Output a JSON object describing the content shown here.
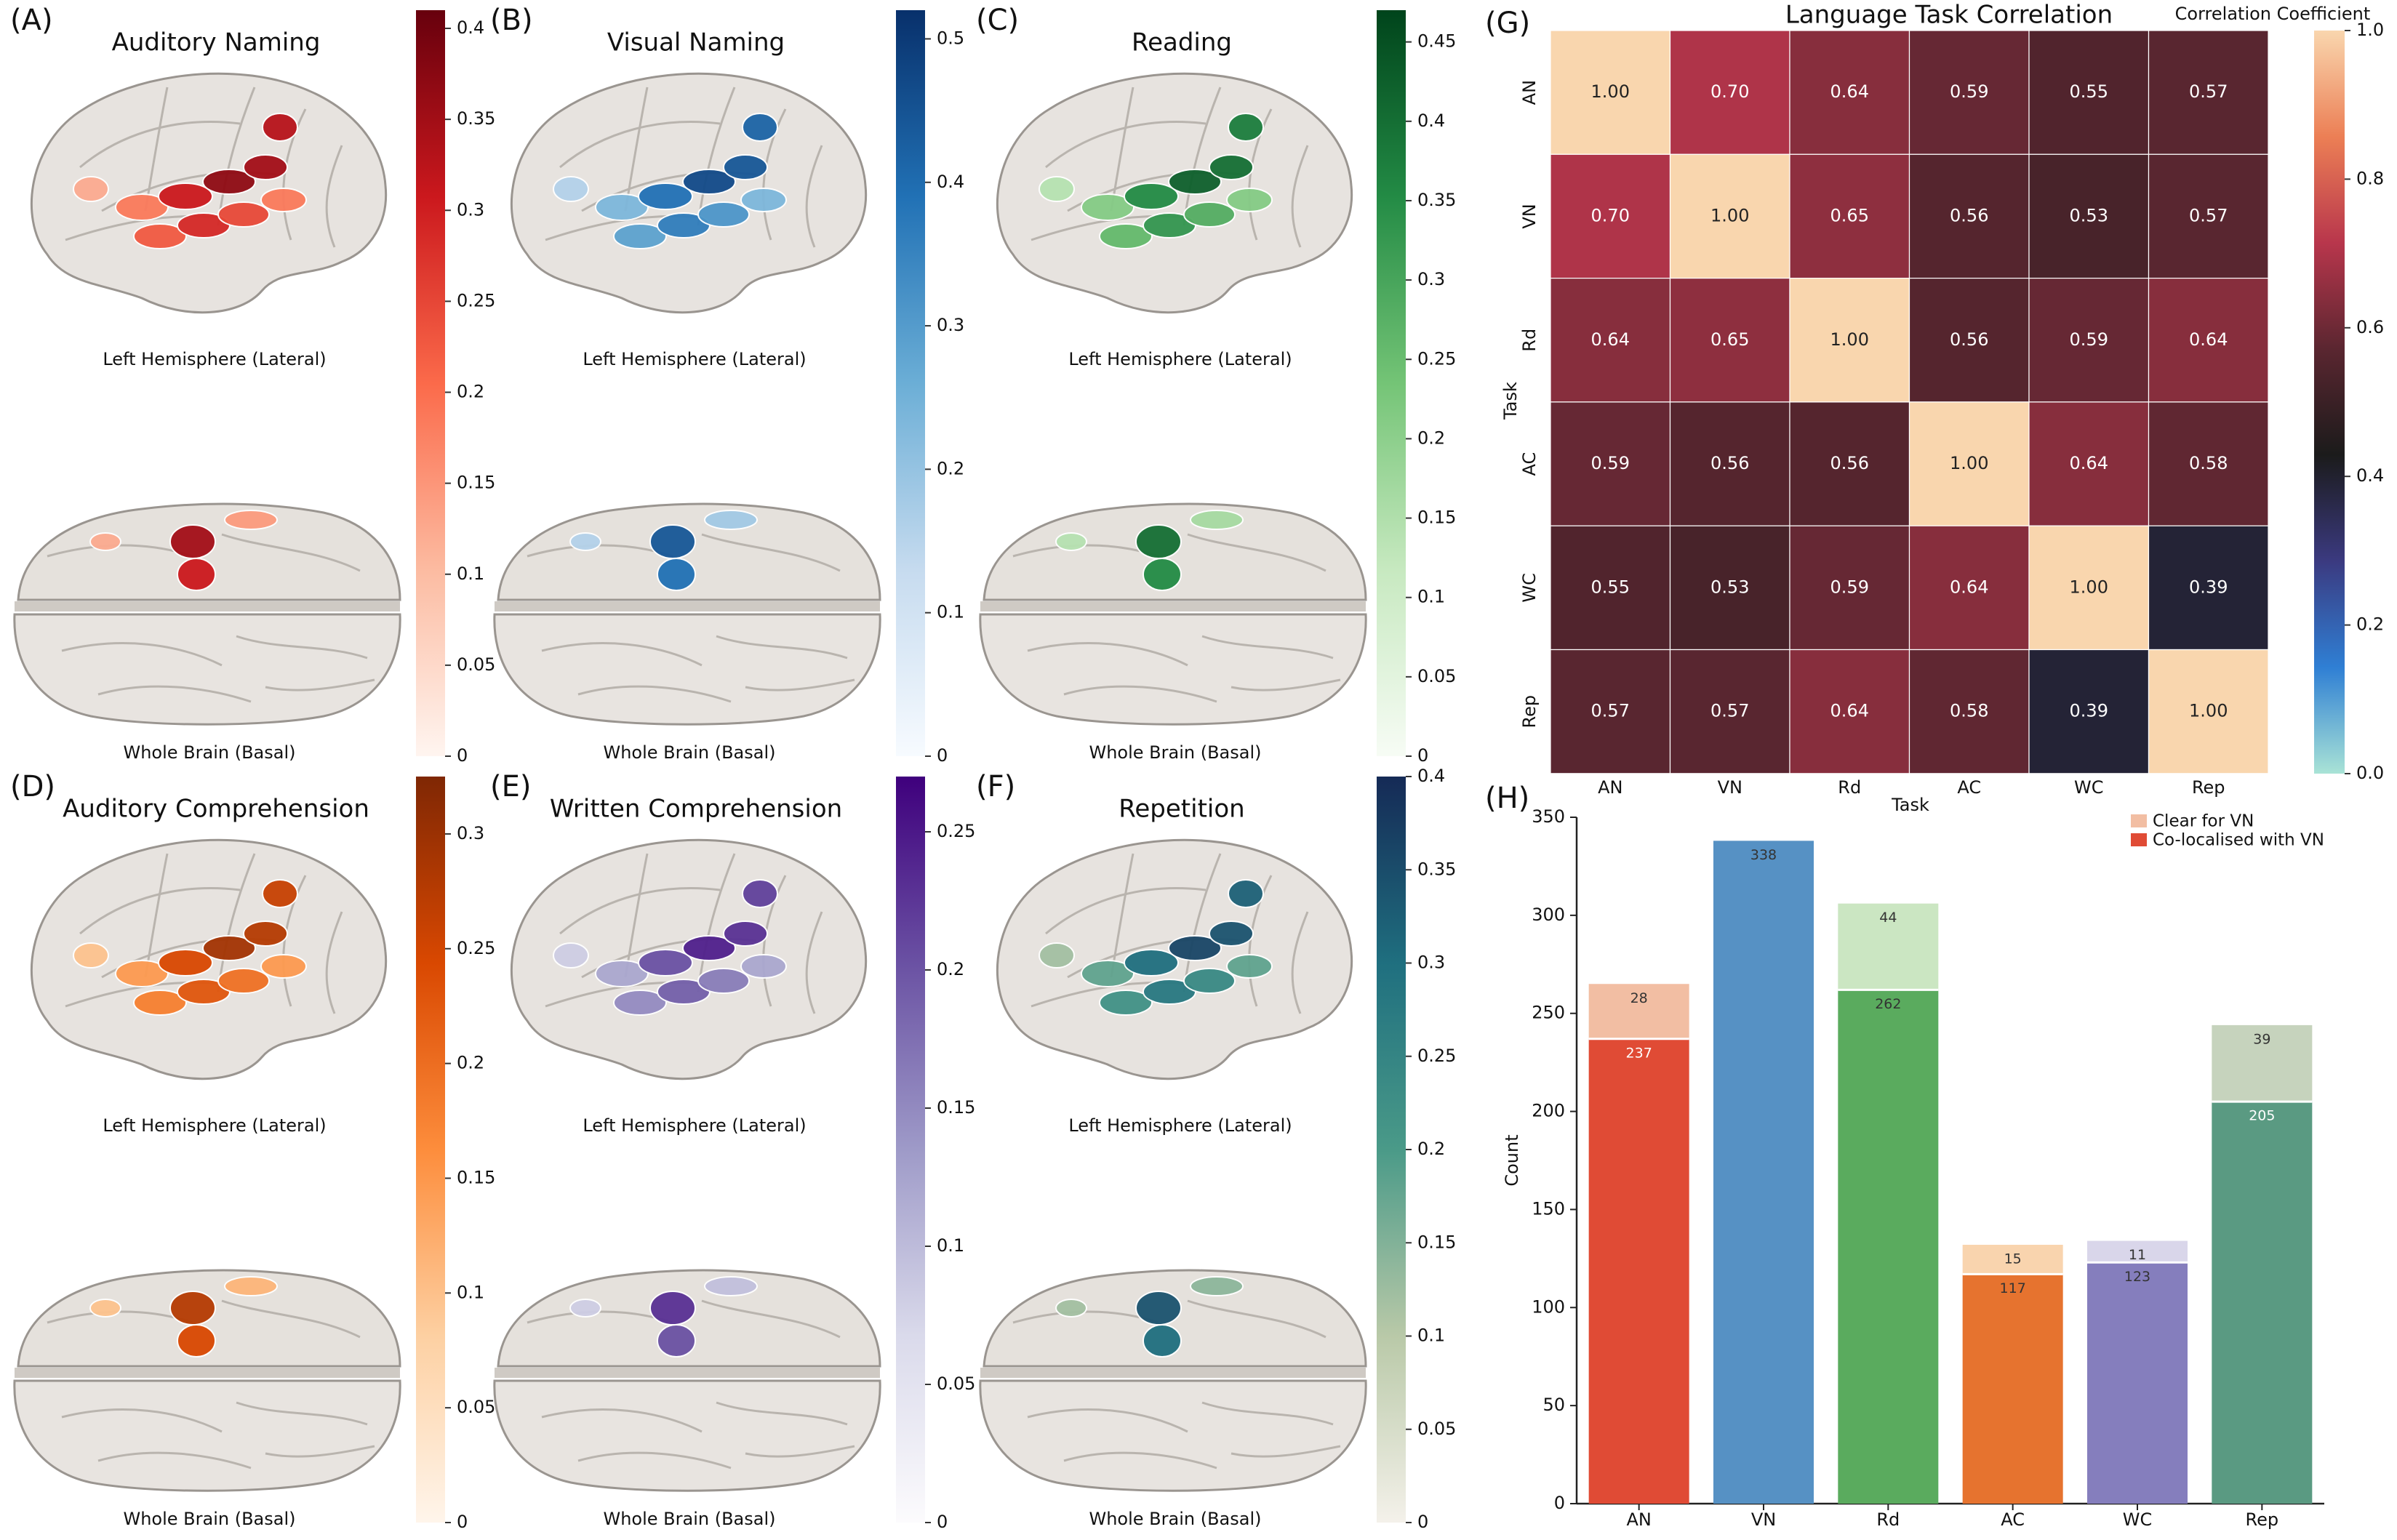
{
  "brain_panels": [
    {
      "letter": "(A)",
      "title": "Auditory Naming",
      "lateral_label": "Left Hemisphere (Lateral)",
      "basal_label": "Whole Brain (Basal)",
      "cmap": [
        "#fff5f0",
        "#fcbba1",
        "#fb6a4a",
        "#cb181d",
        "#67000d"
      ],
      "ticks": [
        0,
        0.05,
        0.1,
        0.15,
        0.2,
        0.25,
        0.3,
        0.35,
        0.4
      ],
      "tick_labels": [
        "0",
        "0.05",
        "0.1",
        "0.15",
        "0.2",
        "0.25",
        "0.3",
        "0.35",
        "0.4"
      ],
      "vmax": 0.41
    },
    {
      "letter": "(B)",
      "title": "Visual Naming",
      "lateral_label": "Left Hemisphere (Lateral)",
      "basal_label": "Whole Brain (Basal)",
      "cmap": [
        "#f7fbff",
        "#c6dbef",
        "#6baed6",
        "#2171b5",
        "#08306b"
      ],
      "ticks": [
        0,
        0.1,
        0.2,
        0.3,
        0.4,
        0.5
      ],
      "tick_labels": [
        "0",
        "0.1",
        "0.2",
        "0.3",
        "0.4",
        "0.5"
      ],
      "vmax": 0.52
    },
    {
      "letter": "(C)",
      "title": "Reading",
      "lateral_label": "Left Hemisphere (Lateral)",
      "basal_label": "Whole Brain (Basal)",
      "cmap": [
        "#f7fcf5",
        "#c7e9c0",
        "#74c476",
        "#238b45",
        "#00441b"
      ],
      "ticks": [
        0,
        0.05,
        0.1,
        0.15,
        0.2,
        0.25,
        0.3,
        0.35,
        0.4,
        0.45
      ],
      "tick_labels": [
        "0",
        "0.05",
        "0.1",
        "0.15",
        "0.2",
        "0.25",
        "0.3",
        "0.35",
        "0.4",
        "0.45"
      ],
      "vmax": 0.47
    },
    {
      "letter": "(D)",
      "title": "Auditory Comprehension",
      "lateral_label": "Left Hemisphere (Lateral)",
      "basal_label": "Whole Brain (Basal)",
      "cmap": [
        "#fff5eb",
        "#fdd0a2",
        "#fd8d3c",
        "#d94801",
        "#7f2704"
      ],
      "ticks": [
        0,
        0.05,
        0.1,
        0.15,
        0.2,
        0.25,
        0.3
      ],
      "tick_labels": [
        "0",
        "0.05",
        "0.1",
        "0.15",
        "0.2",
        "0.25",
        "0.3"
      ],
      "vmax": 0.325
    },
    {
      "letter": "(E)",
      "title": "Written Comprehension",
      "lateral_label": "Left Hemisphere (Lateral)",
      "basal_label": "Whole Brain (Basal)",
      "cmap": [
        "#fcfbfd",
        "#dadaeb",
        "#9e9ac8",
        "#6a51a3",
        "#3f007d"
      ],
      "ticks": [
        0,
        0.05,
        0.1,
        0.15,
        0.2,
        0.25
      ],
      "tick_labels": [
        "0",
        "0.05",
        "0.1",
        "0.15",
        "0.2",
        "0.25"
      ],
      "vmax": 0.27
    },
    {
      "letter": "(F)",
      "title": "Repetition",
      "lateral_label": "Left Hemisphere (Lateral)",
      "basal_label": "Whole Brain (Basal)",
      "cmap": [
        "#f4f1ea",
        "#b9c9a8",
        "#4a9a88",
        "#1f6f7f",
        "#152a56"
      ],
      "ticks": [
        0,
        0.05,
        0.1,
        0.15,
        0.2,
        0.25,
        0.3,
        0.35,
        0.4
      ],
      "tick_labels": [
        "0",
        "0.05",
        "0.1",
        "0.15",
        "0.2",
        "0.25",
        "0.3",
        "0.35",
        "0.4"
      ],
      "vmax": 0.4
    }
  ],
  "chart_data": [
    {
      "panel": "(G)",
      "type": "heatmap",
      "title": "Language Task Correlation",
      "xlabel": "Task",
      "ylabel": "Task",
      "colorbar_label": "Correlation Coefficient",
      "colorbar_ticks": [
        "0.0",
        "0.2",
        "0.4",
        "0.6",
        "0.8",
        "1.0"
      ],
      "colorbar_range": [
        0,
        1
      ],
      "categories": [
        "AN",
        "VN",
        "Rd",
        "AC",
        "WC",
        "Rep"
      ],
      "values": [
        [
          1.0,
          0.7,
          0.64,
          0.59,
          0.55,
          0.57
        ],
        [
          0.7,
          1.0,
          0.65,
          0.56,
          0.53,
          0.57
        ],
        [
          0.64,
          0.65,
          1.0,
          0.56,
          0.59,
          0.64
        ],
        [
          0.59,
          0.56,
          0.56,
          1.0,
          0.64,
          0.58
        ],
        [
          0.55,
          0.53,
          0.59,
          0.64,
          1.0,
          0.39
        ],
        [
          0.57,
          0.57,
          0.64,
          0.58,
          0.39,
          1.0
        ]
      ],
      "cell_labels": [
        [
          "1.00",
          "0.70",
          "0.64",
          "0.59",
          "0.55",
          "0.57"
        ],
        [
          "0.70",
          "1.00",
          "0.65",
          "0.56",
          "0.53",
          "0.57"
        ],
        [
          "0.64",
          "0.65",
          "1.00",
          "0.56",
          "0.59",
          "0.64"
        ],
        [
          "0.59",
          "0.56",
          "0.56",
          "1.00",
          "0.64",
          "0.58"
        ],
        [
          "0.55",
          "0.53",
          "0.59",
          "0.64",
          "1.00",
          "0.39"
        ],
        [
          "0.57",
          "0.57",
          "0.64",
          "0.58",
          "0.39",
          "1.00"
        ]
      ]
    },
    {
      "panel": "(H)",
      "type": "bar",
      "stacked": true,
      "ylabel": "Count",
      "xlabel": "",
      "ylim": [
        0,
        350
      ],
      "yticks": [
        0,
        50,
        100,
        150,
        200,
        250,
        300,
        350
      ],
      "categories": [
        "AN",
        "VN",
        "Rd",
        "AC",
        "WC",
        "Rep"
      ],
      "legend_position": "top-right",
      "series": [
        {
          "name": "Co-localised with VN",
          "values": [
            237,
            338,
            262,
            117,
            123,
            205
          ],
          "labels": [
            "237",
            "338",
            "262",
            "117",
            "123",
            "205"
          ]
        },
        {
          "name": "Clear for VN",
          "values": [
            28,
            0,
            44,
            15,
            11,
            39
          ],
          "labels": [
            "28",
            "",
            "44",
            "15",
            "11",
            "39"
          ]
        }
      ],
      "bar_colors": [
        "#e04b35",
        "#5691c4",
        "#5aab5e",
        "#e6732f",
        "#857ebd",
        "#5a9a82"
      ],
      "light_colors": [
        "#f2bea3",
        "#5691c4",
        "#cbe6c2",
        "#f9d4ae",
        "#d9d6ea",
        "#c6d3bd"
      ],
      "legend_colors": [
        "#f2bea3",
        "#e04b35"
      ]
    }
  ]
}
